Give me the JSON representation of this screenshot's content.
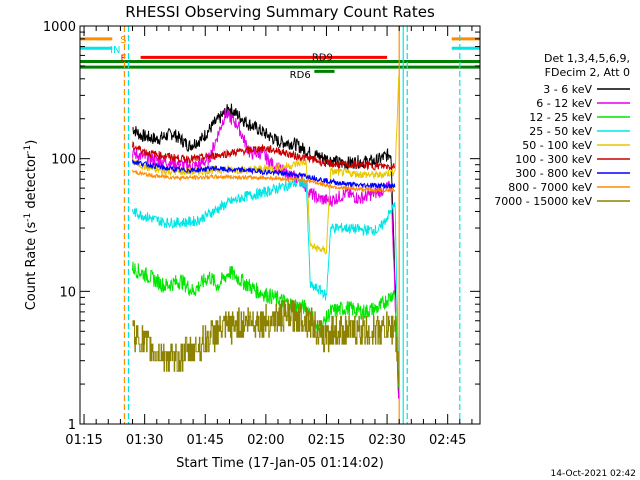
{
  "chart_data": {
    "type": "line",
    "title": "RHESSI Observing Summary Count Rates",
    "xlabel": "Start Time (17-Jan-05 01:14:02)",
    "ylabel_main": "Count Rate (s",
    "ylabel_sup1": "-1",
    "ylabel_mid": " detector",
    "ylabel_sup2": "-1",
    "ylabel_end": ")",
    "xlim_minutes": [
      74,
      173
    ],
    "ylim": [
      1,
      1000
    ],
    "y_scale": "log",
    "x_ticks": [
      {
        "m": 75,
        "label": "01:15"
      },
      {
        "m": 90,
        "label": "01:30"
      },
      {
        "m": 105,
        "label": "01:45"
      },
      {
        "m": 120,
        "label": "02:00"
      },
      {
        "m": 135,
        "label": "02:15"
      },
      {
        "m": 150,
        "label": "02:30"
      },
      {
        "m": 165,
        "label": "02:45"
      }
    ],
    "y_ticks": [
      {
        "v": 1,
        "label": "1"
      },
      {
        "v": 10,
        "label": "10"
      },
      {
        "v": 100,
        "label": "100"
      },
      {
        "v": 1000,
        "label": "1000"
      }
    ],
    "legend": {
      "placement": "right",
      "header": [
        "Det 1,3,4,5,6,9,",
        "FDecim 2, Att 0"
      ],
      "entries": [
        {
          "label": "3 - 6 keV",
          "color": "#000000"
        },
        {
          "label": "6 - 12 keV",
          "color": "#e600e6"
        },
        {
          "label": "12 - 25 keV",
          "color": "#00e600"
        },
        {
          "label": "25 - 50 keV",
          "color": "#00e6e6"
        },
        {
          "label": "50 - 100 keV",
          "color": "#e6c800"
        },
        {
          "label": "100 - 300 keV",
          "color": "#c80000"
        },
        {
          "label": "300 - 800 keV",
          "color": "#0000ff"
        },
        {
          "label": "800 - 7000 keV",
          "color": "#ff8c00"
        },
        {
          "label": "7000 - 15000 keV",
          "color": "#8c8200"
        }
      ]
    },
    "flags": [
      {
        "label": "S",
        "color": "#ff8c00",
        "y_value": 800,
        "segments": [
          [
            74,
            82
          ],
          [
            166,
            173
          ]
        ]
      },
      {
        "label": "IN",
        "color": "#00e6e6",
        "y_value": 680,
        "segments": [
          [
            74,
            82
          ],
          [
            166,
            173
          ]
        ]
      },
      {
        "label": "F",
        "color": "#ff0000",
        "y_value": 580,
        "segments": [
          [
            89,
            150
          ]
        ]
      },
      {
        "label": "RD9",
        "color": "#008000",
        "y_value": 540,
        "segments": [
          [
            74,
            173
          ]
        ]
      },
      {
        "label": "RD6",
        "color": "#008000",
        "y_value": 490,
        "segments": [
          [
            74,
            173
          ]
        ]
      },
      {
        "label": "",
        "color": "#008000",
        "y_value": 455,
        "segments": [
          [
            132,
            137
          ]
        ]
      }
    ],
    "vlines": [
      {
        "m": 85,
        "color": "#ff8c00",
        "dashed": true
      },
      {
        "m": 86,
        "color": "#00e6e6",
        "dashed": true
      },
      {
        "m": 153,
        "color": "#ff8c00",
        "dashed": false
      },
      {
        "m": 154,
        "color": "#00e6e6",
        "dashed": false
      },
      {
        "m": 155,
        "color": "#00e6e6",
        "dashed": true
      },
      {
        "m": 168,
        "color": "#00e6e6",
        "dashed": true
      }
    ],
    "series": [
      {
        "name": "3 - 6 keV",
        "color": "#000000",
        "noise": 0.05,
        "points": [
          [
            87,
            170
          ],
          [
            89,
            150
          ],
          [
            93,
            140
          ],
          [
            97,
            155
          ],
          [
            101,
            125
          ],
          [
            104,
            140
          ],
          [
            107,
            180
          ],
          [
            111,
            240
          ],
          [
            115,
            190
          ],
          [
            119,
            160
          ],
          [
            123,
            135
          ],
          [
            127,
            130
          ],
          [
            131,
            110
          ],
          [
            135,
            100
          ],
          [
            139,
            92
          ],
          [
            143,
            95
          ],
          [
            147,
            95
          ],
          [
            151,
            110
          ],
          [
            153,
            1.2
          ]
        ]
      },
      {
        "name": "6 - 12 keV",
        "color": "#e600e6",
        "noise": 0.05,
        "points": [
          [
            87,
            110
          ],
          [
            91,
            100
          ],
          [
            95,
            95
          ],
          [
            99,
            90
          ],
          [
            103,
            88
          ],
          [
            106,
            100
          ],
          [
            109,
            180
          ],
          [
            110,
            220
          ],
          [
            113,
            180
          ],
          [
            116,
            110
          ],
          [
            119,
            110
          ],
          [
            122,
            88
          ],
          [
            126,
            75
          ],
          [
            129,
            68
          ],
          [
            131,
            55
          ],
          [
            133,
            50
          ],
          [
            136,
            48
          ],
          [
            140,
            55
          ],
          [
            143,
            50
          ],
          [
            147,
            55
          ],
          [
            151,
            62
          ],
          [
            153,
            1.2
          ]
        ]
      },
      {
        "name": "12 - 25 keV",
        "color": "#00e600",
        "noise": 0.06,
        "points": [
          [
            87,
            15
          ],
          [
            91,
            13
          ],
          [
            95,
            11
          ],
          [
            99,
            12
          ],
          [
            102,
            10
          ],
          [
            106,
            13
          ],
          [
            108,
            11
          ],
          [
            111,
            14
          ],
          [
            114,
            12
          ],
          [
            118,
            10
          ],
          [
            122,
            9
          ],
          [
            126,
            8
          ],
          [
            130,
            7.5
          ],
          [
            131,
            7
          ],
          [
            133,
            5
          ],
          [
            136,
            7
          ],
          [
            140,
            7.5
          ],
          [
            144,
            7
          ],
          [
            148,
            7.5
          ],
          [
            152,
            10
          ],
          [
            153,
            1.5
          ]
        ]
      },
      {
        "name": "25 - 50 keV",
        "color": "#00e6e6",
        "noise": 0.04,
        "points": [
          [
            87,
            40
          ],
          [
            91,
            36
          ],
          [
            95,
            33
          ],
          [
            99,
            33
          ],
          [
            103,
            34
          ],
          [
            107,
            40
          ],
          [
            111,
            47
          ],
          [
            115,
            52
          ],
          [
            119,
            55
          ],
          [
            123,
            60
          ],
          [
            127,
            65
          ],
          [
            130,
            66
          ],
          [
            131,
            11
          ],
          [
            134,
            10
          ],
          [
            135,
            9
          ],
          [
            136,
            30
          ],
          [
            140,
            30
          ],
          [
            144,
            29
          ],
          [
            148,
            29
          ],
          [
            152,
            45
          ],
          [
            153,
            1.3
          ]
        ]
      },
      {
        "name": "50 - 100 keV",
        "color": "#e6c800",
        "noise": 0.03,
        "points": [
          [
            87,
            95
          ],
          [
            91,
            85
          ],
          [
            95,
            80
          ],
          [
            99,
            80
          ],
          [
            103,
            80
          ],
          [
            107,
            82
          ],
          [
            111,
            83
          ],
          [
            115,
            82
          ],
          [
            119,
            84
          ],
          [
            123,
            85
          ],
          [
            127,
            90
          ],
          [
            130,
            95
          ],
          [
            131,
            22
          ],
          [
            135,
            20
          ],
          [
            136,
            80
          ],
          [
            140,
            78
          ],
          [
            144,
            76
          ],
          [
            148,
            75
          ],
          [
            152,
            80
          ],
          [
            153,
            500
          ]
        ]
      },
      {
        "name": "100 - 300 keV",
        "color": "#c80000",
        "noise": 0.03,
        "points": [
          [
            87,
            125
          ],
          [
            91,
            110
          ],
          [
            95,
            105
          ],
          [
            99,
            100
          ],
          [
            103,
            100
          ],
          [
            107,
            105
          ],
          [
            111,
            110
          ],
          [
            115,
            115
          ],
          [
            119,
            120
          ],
          [
            123,
            115
          ],
          [
            127,
            105
          ],
          [
            131,
            100
          ],
          [
            135,
            92
          ],
          [
            139,
            90
          ],
          [
            143,
            90
          ],
          [
            147,
            88
          ],
          [
            151,
            88
          ],
          [
            152,
            90
          ]
        ]
      },
      {
        "name": "300 - 800 keV",
        "color": "#0000ff",
        "noise": 0.02,
        "points": [
          [
            87,
            95
          ],
          [
            91,
            90
          ],
          [
            95,
            85
          ],
          [
            99,
            82
          ],
          [
            103,
            82
          ],
          [
            107,
            85
          ],
          [
            111,
            82
          ],
          [
            115,
            82
          ],
          [
            119,
            80
          ],
          [
            123,
            78
          ],
          [
            127,
            76
          ],
          [
            131,
            73
          ],
          [
            135,
            68
          ],
          [
            139,
            65
          ],
          [
            143,
            63
          ],
          [
            147,
            63
          ],
          [
            151,
            62
          ],
          [
            152,
            63
          ]
        ]
      },
      {
        "name": "800 - 7000 keV",
        "color": "#ff8c00",
        "noise": 0.015,
        "points": [
          [
            87,
            80
          ],
          [
            91,
            75
          ],
          [
            95,
            73
          ],
          [
            99,
            72
          ],
          [
            103,
            72
          ],
          [
            107,
            73
          ],
          [
            111,
            73
          ],
          [
            115,
            72
          ],
          [
            119,
            72
          ],
          [
            123,
            71
          ],
          [
            127,
            70
          ],
          [
            131,
            68
          ],
          [
            135,
            63
          ],
          [
            139,
            60
          ],
          [
            143,
            59
          ],
          [
            147,
            58
          ],
          [
            151,
            58
          ],
          [
            152,
            58
          ]
        ]
      },
      {
        "name": "7000 - 15000 keV",
        "color": "#8c8200",
        "noise": 0.12,
        "step": true,
        "points": [
          [
            87,
            5
          ],
          [
            90,
            4
          ],
          [
            93,
            3.5
          ],
          [
            97,
            3
          ],
          [
            101,
            3.5
          ],
          [
            104,
            4
          ],
          [
            108,
            5
          ],
          [
            112,
            5.5
          ],
          [
            116,
            6
          ],
          [
            120,
            6
          ],
          [
            124,
            6.5
          ],
          [
            128,
            6.5
          ],
          [
            131,
            6
          ],
          [
            134,
            4.5
          ],
          [
            136,
            5
          ],
          [
            140,
            5
          ],
          [
            144,
            5
          ],
          [
            148,
            5
          ],
          [
            152,
            5.5
          ],
          [
            153,
            2
          ]
        ]
      }
    ]
  },
  "footer_timestamp": "14-Oct-2021 02:42"
}
